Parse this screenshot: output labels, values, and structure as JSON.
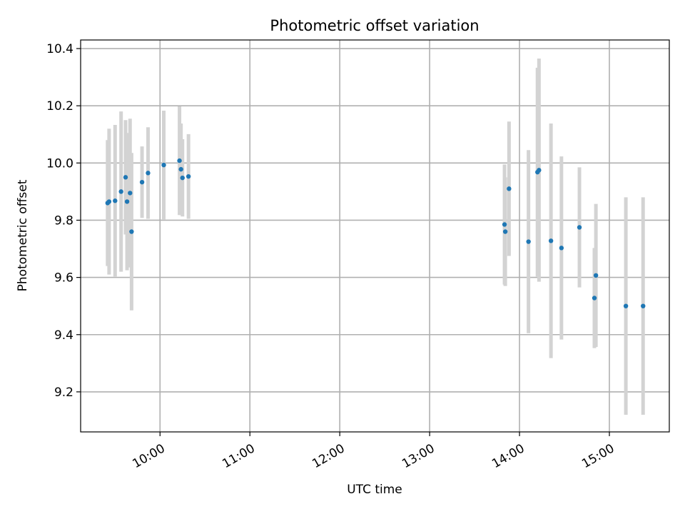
{
  "chart_data": {
    "type": "scatter",
    "title": "Photometric offset variation",
    "xlabel": "UTC time",
    "ylabel": "Photometric offset",
    "grid": true,
    "legend": "none",
    "x_axis_kind": "time",
    "xlim": [
      "09:07",
      "15:40"
    ],
    "ylim": [
      9.06,
      10.43
    ],
    "x_ticks": [
      "10:00",
      "11:00",
      "12:00",
      "13:00",
      "14:00",
      "15:00"
    ],
    "y_ticks": [
      "9.2",
      "9.4",
      "9.6",
      "9.8",
      "10.0",
      "10.2",
      "10.4"
    ],
    "colors": {
      "point": "#1f77b4",
      "errorbar": "#d3d3d3",
      "grid": "#b0b0b0"
    },
    "series": [
      {
        "points": [
          {
            "x": "09:25:00",
            "y": 9.86,
            "err": 0.22
          },
          {
            "x": "09:26:00",
            "y": 9.865,
            "err": 0.255
          },
          {
            "x": "09:30:00",
            "y": 9.868,
            "err": 0.265
          },
          {
            "x": "09:34:00",
            "y": 9.9,
            "err": 0.28
          },
          {
            "x": "09:37:00",
            "y": 9.95,
            "err": 0.2
          },
          {
            "x": "09:38:00",
            "y": 9.865,
            "err": 0.24
          },
          {
            "x": "09:40:00",
            "y": 9.895,
            "err": 0.26
          },
          {
            "x": "09:41:00",
            "y": 9.76,
            "err": 0.275
          },
          {
            "x": "09:48:00",
            "y": 9.933,
            "err": 0.125
          },
          {
            "x": "09:52:00",
            "y": 9.965,
            "err": 0.16
          },
          {
            "x": "10:02:30",
            "y": 9.993,
            "err": 0.19
          },
          {
            "x": "10:13:00",
            "y": 10.008,
            "err": 0.19
          },
          {
            "x": "10:14:00",
            "y": 9.978,
            "err": 0.16
          },
          {
            "x": "10:15:00",
            "y": 9.948,
            "err": 0.135
          },
          {
            "x": "10:19:00",
            "y": 9.953,
            "err": 0.148
          },
          {
            "x": "13:50:00",
            "y": 9.785,
            "err": 0.21
          },
          {
            "x": "13:50:30",
            "y": 9.76,
            "err": 0.19
          },
          {
            "x": "13:53:00",
            "y": 9.91,
            "err": 0.235
          },
          {
            "x": "14:06:00",
            "y": 9.725,
            "err": 0.32
          },
          {
            "x": "14:12:00",
            "y": 9.968,
            "err": 0.365
          },
          {
            "x": "14:13:00",
            "y": 9.975,
            "err": 0.39
          },
          {
            "x": "14:21:00",
            "y": 9.728,
            "err": 0.41
          },
          {
            "x": "14:28:00",
            "y": 9.703,
            "err": 0.32
          },
          {
            "x": "14:40:00",
            "y": 9.775,
            "err": 0.21
          },
          {
            "x": "14:50:00",
            "y": 9.528,
            "err": 0.175
          },
          {
            "x": "14:51:00",
            "y": 9.607,
            "err": 0.25
          },
          {
            "x": "15:11:00",
            "y": 9.5,
            "err": 0.38
          },
          {
            "x": "15:22:30",
            "y": 9.5,
            "err": 0.38
          }
        ]
      }
    ]
  }
}
